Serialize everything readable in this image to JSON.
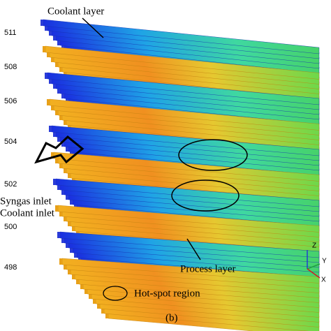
{
  "scale": {
    "labels": [
      511,
      508,
      506,
      504,
      502,
      500,
      498
    ]
  },
  "annotations": {
    "coolant_layer": "Coolant layer",
    "syngas_inlet": "Syngas inlet",
    "coolant_inlet": "Coolant inlet",
    "process_layer": "Process layer",
    "hot_spot": "Hot-spot region"
  },
  "axes": {
    "z": "Z",
    "y": "Y",
    "x": "X"
  },
  "caption": "(b)"
}
